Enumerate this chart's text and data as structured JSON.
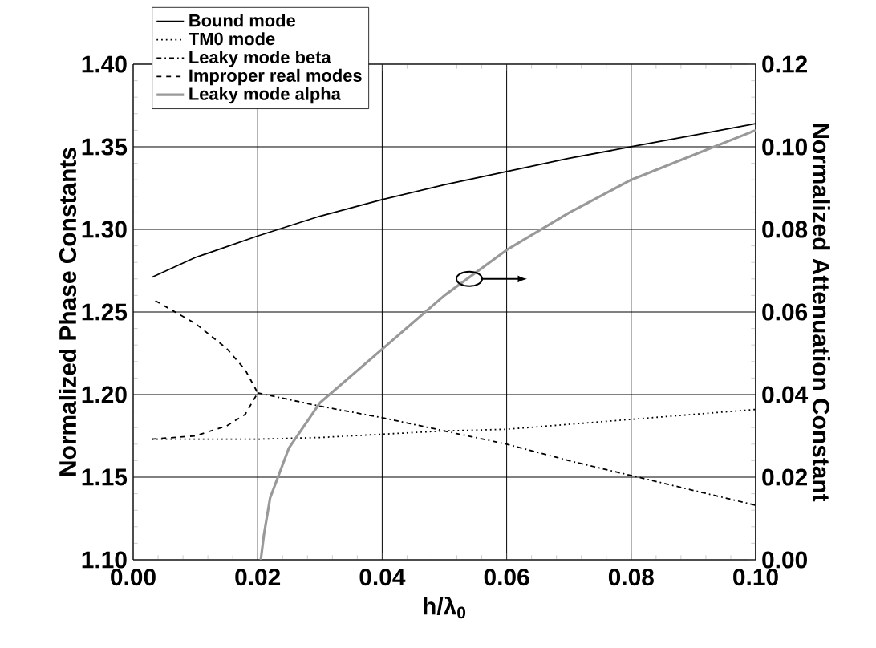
{
  "chart_data": {
    "type": "line",
    "xlabel": "h/λ$_{0}$",
    "ylabel": "Normalized Phase Constants",
    "y2label": "Normalized Attenuation Constant",
    "xlim": [
      0,
      0.1
    ],
    "xticks": [
      {
        "value": 0,
        "label": "0.00"
      },
      {
        "value": 0.02,
        "label": "0.02"
      },
      {
        "value": 0.04,
        "label": "0.04"
      },
      {
        "value": 0.06,
        "label": "0.06"
      },
      {
        "value": 0.08,
        "label": "0.08"
      },
      {
        "value": 0.1,
        "label": "0.10"
      }
    ],
    "ylim": [
      1.1,
      1.4
    ],
    "yticks": [
      {
        "value": 1.1,
        "label": "1.10"
      },
      {
        "value": 1.15,
        "label": "1.15"
      },
      {
        "value": 1.2,
        "label": "1.20"
      },
      {
        "value": 1.25,
        "label": "1.25"
      },
      {
        "value": 1.3,
        "label": "1.30"
      },
      {
        "value": 1.35,
        "label": "1.35"
      },
      {
        "value": 1.4,
        "label": "1.40"
      }
    ],
    "y2lim": [
      0,
      0.12
    ],
    "y2ticks": [
      {
        "value": 0,
        "label": "0.00"
      },
      {
        "value": 0.02,
        "label": "0.02"
      },
      {
        "value": 0.04,
        "label": "0.04"
      },
      {
        "value": 0.06,
        "label": "0.06"
      },
      {
        "value": 0.08,
        "label": "0.08"
      },
      {
        "value": 0.1,
        "label": "0.10"
      },
      {
        "value": 0.12,
        "label": "0.12"
      }
    ],
    "grid": true,
    "legend": "top left",
    "marker": "none",
    "series": [
      {
        "name": "Bound mode",
        "color": "#000000",
        "line_style": "solid",
        "x": [
          0.003,
          0.01,
          0.02,
          0.03,
          0.04,
          0.05,
          0.06,
          0.07,
          0.08,
          0.09,
          0.1
        ],
        "values": [
          1.271,
          1.283,
          1.296,
          1.308,
          1.318,
          1.327,
          1.335,
          1.343,
          1.35,
          1.357,
          1.364
        ]
      },
      {
        "name": "TM0 mode",
        "color": "#000000",
        "line_style": "dotted",
        "x": [
          0.003,
          0.02,
          0.03,
          0.04,
          0.05,
          0.06,
          0.07,
          0.08,
          0.09,
          0.1
        ],
        "values": [
          1.173,
          1.173,
          1.174,
          1.176,
          1.178,
          1.179,
          1.182,
          1.185,
          1.188,
          1.191
        ]
      },
      {
        "name": "Leaky mode beta",
        "color": "#000000",
        "line_style": "dashdotted",
        "x": [
          0.02,
          0.03,
          0.04,
          0.05,
          0.06,
          0.07,
          0.08,
          0.09,
          0.1
        ],
        "values": [
          1.201,
          1.193,
          1.186,
          1.178,
          1.17,
          1.16,
          1.151,
          1.142,
          1.133
        ]
      },
      {
        "name": "Improper real modes",
        "color": "#000000",
        "line_style": "dashed",
        "x": [
          0.003,
          0.01,
          0.015,
          0.018,
          0.02,
          0.018,
          0.015,
          0.01,
          0.003
        ],
        "values": [
          1.173,
          1.175,
          1.181,
          1.188,
          1.201,
          1.215,
          1.228,
          1.243,
          1.258
        ]
      },
      {
        "name": "Leaky mode alpha",
        "color": "#999999",
        "line_style": "solid",
        "axis": "y2",
        "x": [
          0.0205,
          0.021,
          0.022,
          0.025,
          0.03,
          0.04,
          0.05,
          0.06,
          0.07,
          0.08,
          0.09,
          0.1
        ],
        "values": [
          0,
          0.006,
          0.015,
          0.027,
          0.038,
          0.051,
          0.064,
          0.075,
          0.084,
          0.092,
          0.098,
          0.104
        ]
      }
    ]
  }
}
